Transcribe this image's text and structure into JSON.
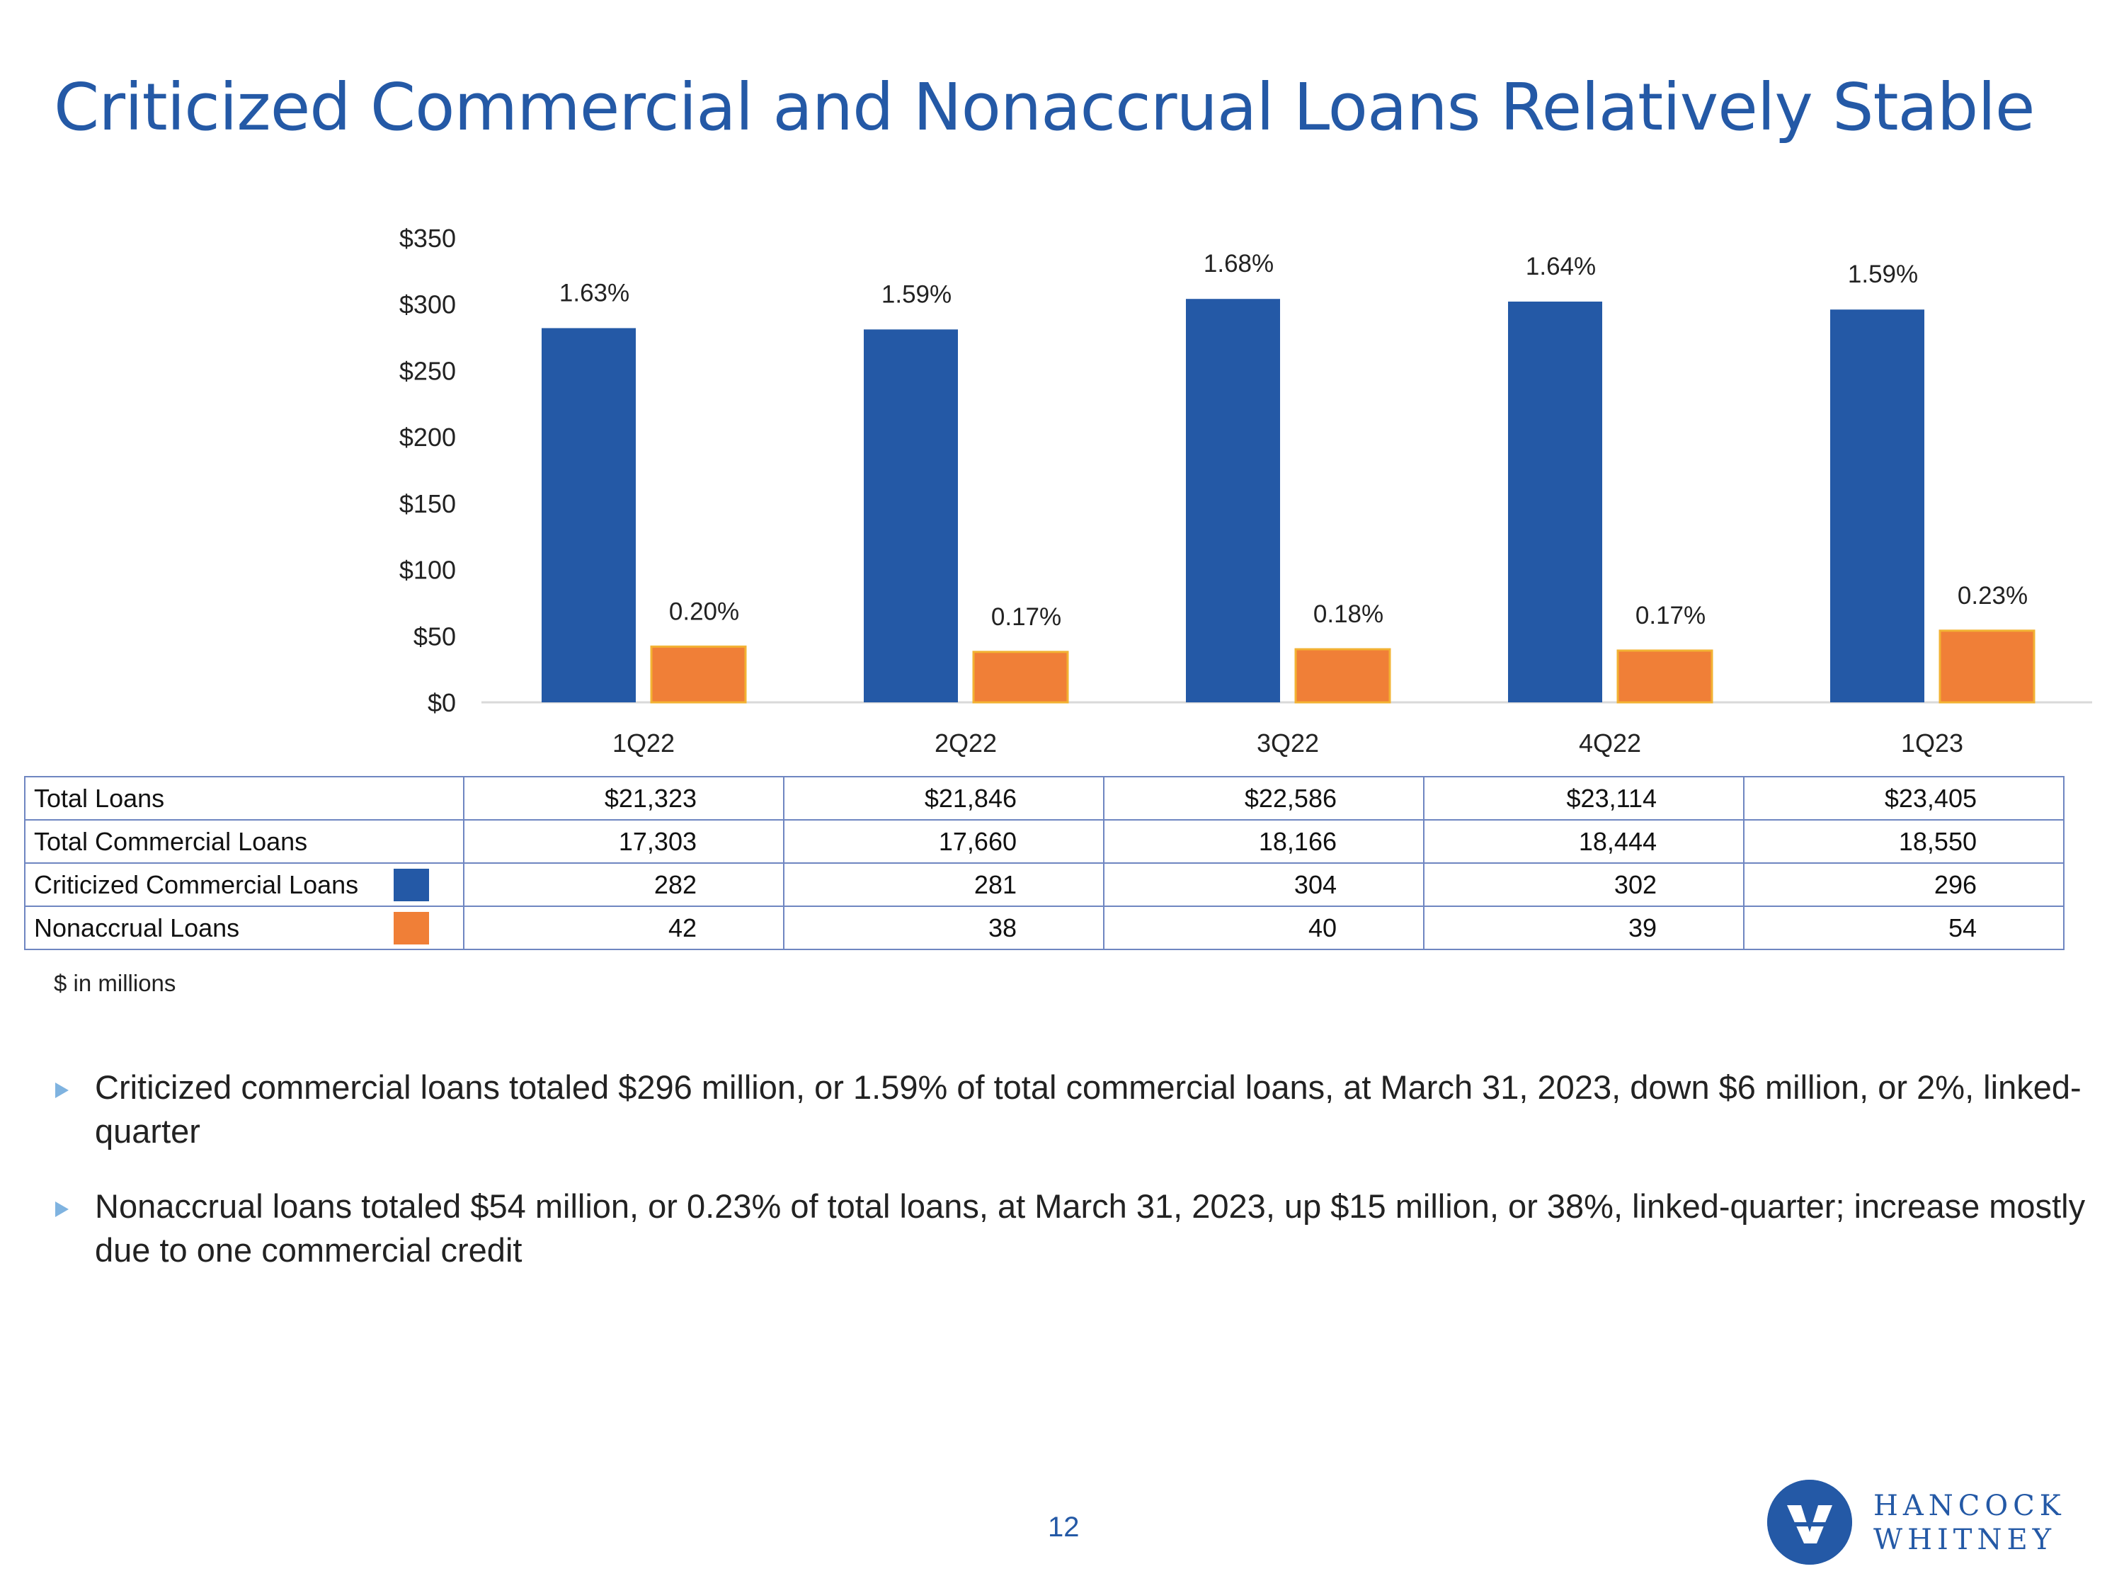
{
  "title": "Criticized Commercial and Nonaccrual Loans Relatively Stable",
  "colors": {
    "title": "#2459a6",
    "criticized": "#2459a6",
    "nonaccrual": "#f07f37",
    "table_border": "#6f86c1",
    "bullet": "#7fb3e0"
  },
  "chart_data": {
    "type": "bar",
    "title": "",
    "xlabel": "",
    "ylabel": "",
    "categories": [
      "1Q22",
      "2Q22",
      "3Q22",
      "4Q22",
      "1Q23"
    ],
    "y_ticks": [
      "$0",
      "$50",
      "$100",
      "$150",
      "$200",
      "$250",
      "$300",
      "$350"
    ],
    "ylim": [
      0,
      350
    ],
    "grid": false,
    "series": [
      {
        "name": "Criticized Commercial Loans",
        "color": "#2459a6",
        "values": [
          282,
          281,
          304,
          302,
          296
        ],
        "labels": [
          "1.63%",
          "1.59%",
          "1.68%",
          "1.64%",
          "1.59%"
        ]
      },
      {
        "name": "Nonaccrual Loans",
        "color": "#f07f37",
        "values": [
          42,
          38,
          40,
          39,
          54
        ],
        "labels": [
          "0.20%",
          "0.17%",
          "0.18%",
          "0.17%",
          "0.23%"
        ]
      }
    ]
  },
  "table": {
    "rows": [
      {
        "label": "Total Loans",
        "values": [
          "$21,323",
          "$21,846",
          "$22,586",
          "$23,114",
          "$23,405"
        ]
      },
      {
        "label": "Total Commercial Loans",
        "values": [
          "17,303",
          "17,660",
          "18,166",
          "18,444",
          "18,550"
        ]
      },
      {
        "label": "Criticized Commercial Loans",
        "values": [
          "282",
          "281",
          "304",
          "302",
          "296"
        ]
      },
      {
        "label": "Nonaccrual Loans",
        "values": [
          "42",
          "38",
          "40",
          "39",
          "54"
        ]
      }
    ]
  },
  "note": "$ in millions",
  "bullets": [
    "Criticized commercial loans totaled $296 million, or 1.59% of total commercial loans, at March 31, 2023, down $6 million, or 2%, linked-quarter",
    "Nonaccrual loans totaled $54 million, or 0.23% of total loans, at March 31, 2023, up $15 million, or 38%, linked-quarter; increase mostly due to one commercial credit"
  ],
  "page_number": "12",
  "logo": {
    "line1": "HANCOCK",
    "line2": "WHITNEY"
  }
}
